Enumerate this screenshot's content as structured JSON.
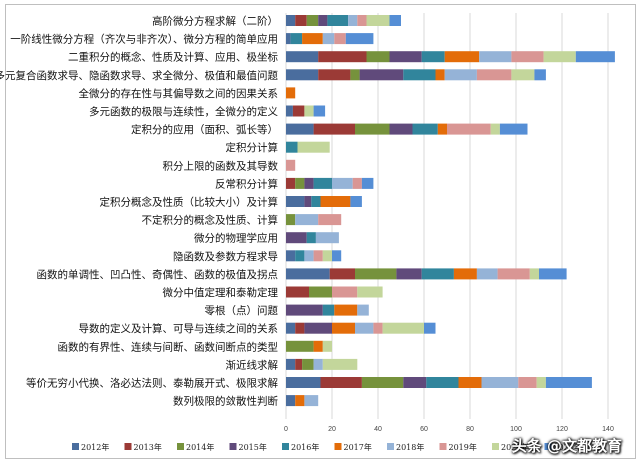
{
  "chart_data": {
    "type": "bar",
    "orientation": "horizontal",
    "stacked": true,
    "title": "",
    "xlabel": "",
    "ylabel": "",
    "xlim": [
      0,
      150
    ],
    "xticks": [
      0,
      20,
      40,
      60,
      80,
      100,
      120,
      140
    ],
    "grid": true,
    "legend_position": "bottom",
    "categories": [
      "高阶微分方程求解（二阶）",
      "一阶线性微分方程（齐次与非齐次）、微分方程的简单应用",
      "二重积分的概念、性质及计算、应用、极坐标",
      "多元复合函数求导、隐函数求导、求全微分、极值和最值问题",
      "全微分的存在性与其偏导数之间的因果关系",
      "多元函数的极限与连续性，全微分的定义",
      "定积分的应用（面积、弧长等）",
      "定积分计算",
      "积分上限的函数及其导数",
      "反常积分计算",
      "定积分概念及性质（比较大小）及计算",
      "不定积分的概念及性质、计算",
      "微分的物理学应用",
      "隐函数及参数方程求导",
      "函数的单调性、凹凸性、奇偶性、函数的极值及拐点",
      "微分中值定理和泰勒定理",
      "零根（点）问题",
      "导数的定义及计算、可导与连续之间的关系",
      "函数的有界性、连续与间断、函数间断点的类型",
      "渐近线求解",
      "等价无穷小代换、洛必达法则、泰勒展开式、极限求解",
      "数列极限的敛散性判断"
    ],
    "series": [
      {
        "name": "2012年",
        "color": "#4a6d9e",
        "values": [
          4,
          2,
          14,
          14,
          0,
          3,
          12,
          0,
          0,
          0,
          8,
          0,
          0,
          4,
          19,
          0,
          0,
          4,
          0,
          4,
          15,
          4
        ]
      },
      {
        "name": "2013年",
        "color": "#9b3a36",
        "values": [
          5,
          0,
          21,
          14,
          0,
          5,
          18,
          0,
          0,
          4,
          0,
          0,
          0,
          0,
          11,
          10,
          0,
          4,
          0,
          3,
          18,
          0
        ]
      },
      {
        "name": "2014年",
        "color": "#76923c",
        "values": [
          5,
          0,
          10,
          4,
          0,
          0,
          15,
          0,
          0,
          4,
          0,
          4,
          0,
          0,
          18,
          10,
          0,
          0,
          12,
          5,
          18,
          0
        ]
      },
      {
        "name": "2015年",
        "color": "#604a7b",
        "values": [
          4,
          0,
          14,
          19,
          0,
          0,
          10,
          0,
          0,
          4,
          3,
          0,
          9,
          0,
          11,
          0,
          16,
          12,
          0,
          0,
          10,
          0
        ]
      },
      {
        "name": "2016年",
        "color": "#31859c",
        "values": [
          9,
          5,
          10,
          14,
          0,
          0,
          11,
          5,
          0,
          8,
          4,
          0,
          4,
          4,
          14,
          0,
          5,
          0,
          0,
          0,
          14,
          0
        ]
      },
      {
        "name": "2017年",
        "color": "#e36c09",
        "values": [
          0,
          9,
          15,
          4,
          4,
          0,
          4,
          0,
          0,
          0,
          13,
          0,
          0,
          0,
          10,
          0,
          10,
          10,
          4,
          0,
          10,
          4
        ]
      },
      {
        "name": "2018年",
        "color": "#95b3d7",
        "values": [
          4,
          5,
          14,
          14,
          0,
          0,
          0,
          0,
          0,
          9,
          0,
          10,
          10,
          4,
          9,
          0,
          5,
          8,
          0,
          4,
          16,
          6
        ]
      },
      {
        "name": "2019年",
        "color": "#d99694",
        "values": [
          4,
          5,
          14,
          15,
          0,
          0,
          19,
          0,
          4,
          4,
          0,
          10,
          0,
          4,
          14,
          11,
          0,
          4,
          0,
          0,
          8,
          0
        ]
      },
      {
        "name": "2020年",
        "color": "#c3d69b",
        "values": [
          10,
          0,
          14,
          10,
          0,
          4,
          4,
          14,
          0,
          0,
          0,
          0,
          0,
          4,
          4,
          11,
          0,
          18,
          4,
          15,
          4,
          0
        ]
      },
      {
        "name": "2021年",
        "color": "#558ed5",
        "values": [
          5,
          12,
          17,
          5,
          0,
          5,
          12,
          0,
          0,
          5,
          5,
          0,
          0,
          4,
          12,
          0,
          0,
          5,
          0,
          0,
          20,
          0
        ]
      }
    ]
  },
  "watermark": "头条 @文都教育"
}
